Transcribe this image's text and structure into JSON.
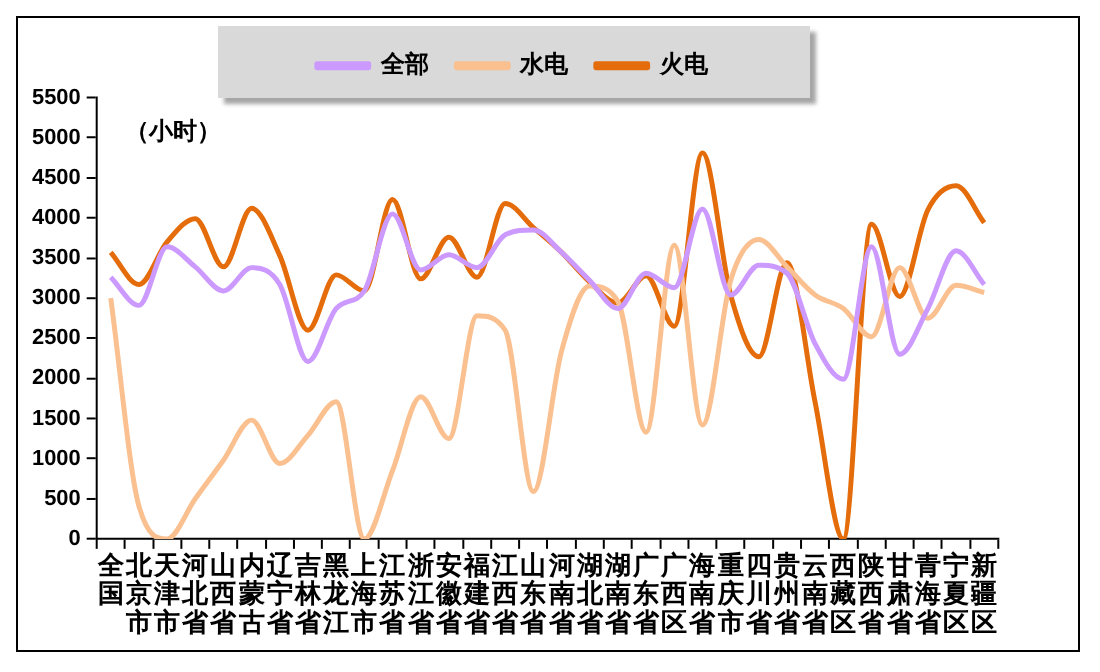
{
  "chart_data": {
    "type": "line",
    "categories": [
      "全国",
      "北京市",
      "天津市",
      "河北省",
      "山西省",
      "内蒙古",
      "辽宁省",
      "吉林省",
      "黑龙江",
      "上海市",
      "江苏省",
      "浙江省",
      "安徽省",
      "福建省",
      "江西省",
      "山东省",
      "河南省",
      "湖北省",
      "湖南省",
      "广东省",
      "广西区",
      "海南省",
      "重庆市",
      "四川省",
      "贵州省",
      "云南省",
      "西藏区",
      "陕西省",
      "甘肃省",
      "青海省",
      "宁夏区",
      "新疆区"
    ],
    "series": [
      {
        "name": "全部",
        "color": "#cc99ff",
        "values": [
          3260,
          2910,
          3640,
          3390,
          3090,
          3380,
          3170,
          2210,
          2870,
          3090,
          4050,
          3350,
          3540,
          3380,
          3790,
          3850,
          3570,
          3220,
          2870,
          3310,
          3130,
          4110,
          3040,
          3410,
          3310,
          2430,
          1990,
          3640,
          2300,
          2870,
          3590,
          3170
        ]
      },
      {
        "name": "水电",
        "color": "#fac090",
        "values": [
          3000,
          410,
          0,
          500,
          980,
          1480,
          940,
          1290,
          1710,
          0,
          850,
          1770,
          1250,
          2780,
          2600,
          590,
          2340,
          3150,
          2960,
          1330,
          3660,
          1420,
          3220,
          3730,
          3390,
          3040,
          2870,
          2520,
          3380,
          2750,
          3160,
          3070
        ]
      },
      {
        "name": "火电",
        "color": "#e46c0a",
        "values": [
          3570,
          3170,
          3700,
          3990,
          3390,
          4120,
          3530,
          2600,
          3290,
          3090,
          4230,
          3240,
          3760,
          3260,
          4180,
          3880,
          3570,
          3200,
          2940,
          3280,
          2650,
          4810,
          3040,
          2270,
          3440,
          1700,
          0,
          3920,
          3020,
          4100,
          4400,
          3940
        ]
      }
    ],
    "ylim": [
      0,
      5500
    ],
    "yticks": [
      0,
      500,
      1000,
      1500,
      2000,
      2500,
      3000,
      3500,
      4000,
      4500,
      5000,
      5500
    ],
    "annotations": [
      "（小时）"
    ],
    "grid": false,
    "legend": "top",
    "marker": "none",
    "line_style": "solid"
  }
}
